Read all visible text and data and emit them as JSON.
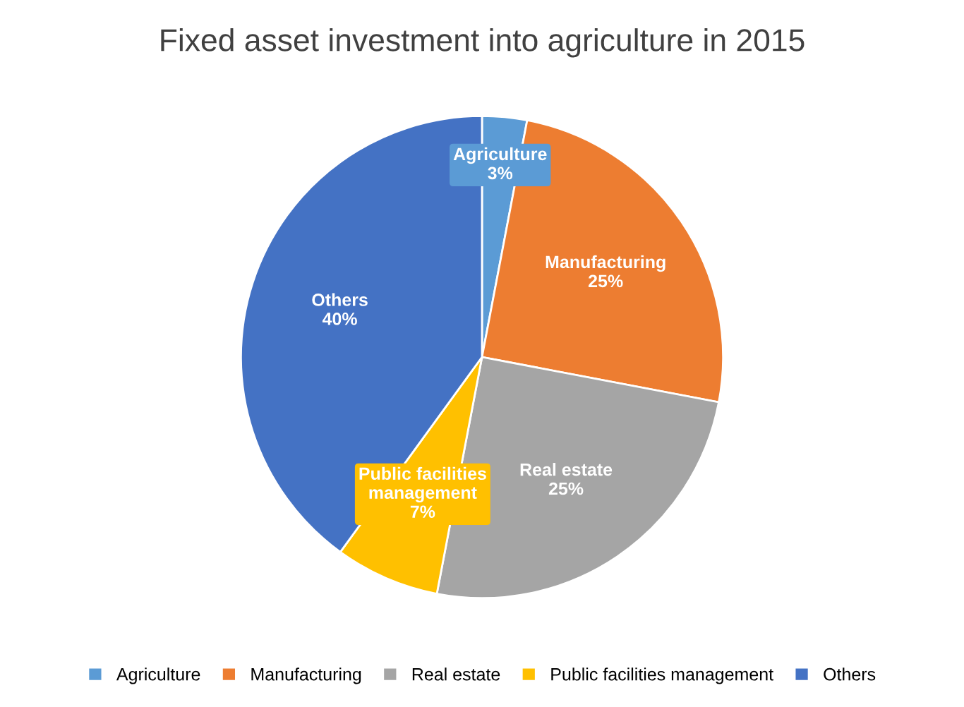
{
  "chart_data": {
    "type": "pie",
    "title": "Fixed asset investment into agriculture in 2015",
    "categories": [
      "Agriculture",
      "Manufacturing",
      "Real estate",
      "Public facilities management",
      "Others"
    ],
    "values": [
      3,
      25,
      25,
      7,
      40
    ],
    "colors": [
      "#5b9bd5",
      "#ed7d31",
      "#a5a5a5",
      "#ffc000",
      "#4472c4"
    ],
    "value_labels": [
      "3%",
      "25%",
      "25%",
      "7%",
      "40%"
    ],
    "legend": "bottom"
  }
}
